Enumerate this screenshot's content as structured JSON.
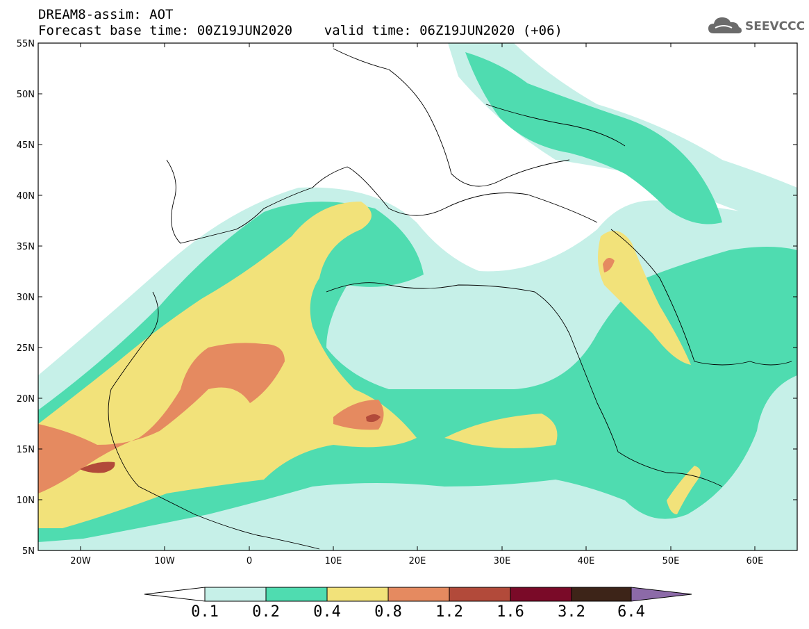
{
  "title": {
    "line1": "DREAM8-assim: AOT",
    "line2": "Forecast base time: 00Z19JUN2020    valid time: 06Z19JUN2020 (+06)"
  },
  "logo": {
    "text": "SEEVCCC",
    "icon": "cloud-icon"
  },
  "map": {
    "lat_labels": [
      "55N",
      "50N",
      "45N",
      "40N",
      "35N",
      "30N",
      "25N",
      "20N",
      "15N",
      "10N",
      "5N"
    ],
    "lon_labels": [
      "20W",
      "10W",
      "0",
      "10E",
      "20E",
      "30E",
      "40E",
      "50E",
      "60E"
    ]
  },
  "colorbar": {
    "labels": [
      "0.1",
      "0.2",
      "0.4",
      "0.8",
      "1.2",
      "1.6",
      "3.2",
      "6.4"
    ],
    "colors": [
      "#ffffff",
      "#c6f0e8",
      "#4fdcb0",
      "#f2e27a",
      "#e58a60",
      "#b24a3a",
      "#7a0a28",
      "#3d2418",
      "#8c6aa8"
    ]
  }
}
